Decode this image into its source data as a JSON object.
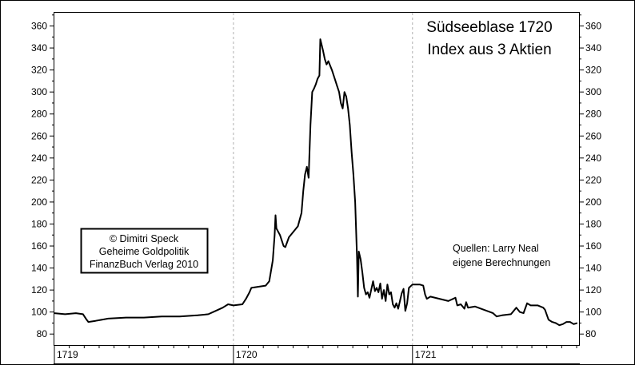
{
  "chart_data": {
    "type": "line",
    "title": "Südseeblase 1720",
    "subtitle": "Index aus 3 Aktien",
    "xlabel": "",
    "ylabel": "",
    "x_domain": [
      1719.0,
      1721.93
    ],
    "ylim": [
      70,
      372
    ],
    "y_ticks": [
      80,
      100,
      120,
      140,
      160,
      180,
      200,
      220,
      240,
      260,
      280,
      300,
      320,
      340,
      360
    ],
    "x_year_labels": [
      {
        "year": 1719,
        "label": "1719"
      },
      {
        "year": 1720,
        "label": "1720"
      },
      {
        "year": 1721,
        "label": "1721"
      }
    ],
    "grid": "dashed vertical lines at year boundaries",
    "line_color": "#000000",
    "series": [
      {
        "values": [
          [
            1719.0,
            99
          ],
          [
            1719.06,
            98
          ],
          [
            1719.12,
            99
          ],
          [
            1719.16,
            98
          ],
          [
            1719.18,
            93
          ],
          [
            1719.19,
            91
          ],
          [
            1719.23,
            92
          ],
          [
            1719.3,
            94
          ],
          [
            1719.4,
            95
          ],
          [
            1719.5,
            95
          ],
          [
            1719.6,
            96
          ],
          [
            1719.7,
            96
          ],
          [
            1719.8,
            97
          ],
          [
            1719.86,
            98
          ],
          [
            1719.9,
            101
          ],
          [
            1719.94,
            104
          ],
          [
            1719.97,
            107
          ],
          [
            1720.0,
            106
          ],
          [
            1720.05,
            107
          ],
          [
            1720.07,
            112
          ],
          [
            1720.09,
            118
          ],
          [
            1720.1,
            122
          ],
          [
            1720.14,
            123
          ],
          [
            1720.18,
            124
          ],
          [
            1720.2,
            128
          ],
          [
            1720.22,
            147
          ],
          [
            1720.23,
            170
          ],
          [
            1720.235,
            188
          ],
          [
            1720.24,
            176
          ],
          [
            1720.26,
            170
          ],
          [
            1720.28,
            160
          ],
          [
            1720.29,
            159
          ],
          [
            1720.31,
            168
          ],
          [
            1720.33,
            172
          ],
          [
            1720.36,
            178
          ],
          [
            1720.38,
            190
          ],
          [
            1720.39,
            210
          ],
          [
            1720.4,
            225
          ],
          [
            1720.41,
            232
          ],
          [
            1720.42,
            222
          ],
          [
            1720.43,
            270
          ],
          [
            1720.44,
            300
          ],
          [
            1720.45,
            303
          ],
          [
            1720.46,
            307
          ],
          [
            1720.47,
            312
          ],
          [
            1720.48,
            315
          ],
          [
            1720.485,
            348
          ],
          [
            1720.5,
            338
          ],
          [
            1720.51,
            330
          ],
          [
            1720.52,
            325
          ],
          [
            1720.53,
            328
          ],
          [
            1720.55,
            320
          ],
          [
            1720.57,
            310
          ],
          [
            1720.58,
            305
          ],
          [
            1720.59,
            300
          ],
          [
            1720.6,
            290
          ],
          [
            1720.61,
            285
          ],
          [
            1720.62,
            300
          ],
          [
            1720.63,
            296
          ],
          [
            1720.64,
            285
          ],
          [
            1720.65,
            270
          ],
          [
            1720.66,
            245
          ],
          [
            1720.67,
            225
          ],
          [
            1720.68,
            200
          ],
          [
            1720.69,
            150
          ],
          [
            1720.695,
            114
          ],
          [
            1720.7,
            155
          ],
          [
            1720.71,
            148
          ],
          [
            1720.72,
            136
          ],
          [
            1720.73,
            122
          ],
          [
            1720.74,
            116
          ],
          [
            1720.75,
            118
          ],
          [
            1720.76,
            113
          ],
          [
            1720.78,
            128
          ],
          [
            1720.79,
            119
          ],
          [
            1720.8,
            122
          ],
          [
            1720.81,
            118
          ],
          [
            1720.82,
            126
          ],
          [
            1720.83,
            112
          ],
          [
            1720.84,
            120
          ],
          [
            1720.85,
            110
          ],
          [
            1720.86,
            125
          ],
          [
            1720.87,
            116
          ],
          [
            1720.88,
            118
          ],
          [
            1720.89,
            107
          ],
          [
            1720.9,
            104
          ],
          [
            1720.91,
            108
          ],
          [
            1720.92,
            103
          ],
          [
            1720.93,
            110
          ],
          [
            1720.94,
            117
          ],
          [
            1720.95,
            121
          ],
          [
            1720.96,
            101
          ],
          [
            1720.97,
            108
          ],
          [
            1720.98,
            122
          ],
          [
            1721.0,
            125
          ],
          [
            1721.04,
            125
          ],
          [
            1721.06,
            124
          ],
          [
            1721.07,
            116
          ],
          [
            1721.08,
            112
          ],
          [
            1721.1,
            114
          ],
          [
            1721.15,
            112
          ],
          [
            1721.2,
            110
          ],
          [
            1721.24,
            113
          ],
          [
            1721.25,
            106
          ],
          [
            1721.27,
            107
          ],
          [
            1721.29,
            103
          ],
          [
            1721.3,
            109
          ],
          [
            1721.31,
            104
          ],
          [
            1721.35,
            105
          ],
          [
            1721.4,
            102
          ],
          [
            1721.45,
            99
          ],
          [
            1721.47,
            96
          ],
          [
            1721.5,
            97
          ],
          [
            1721.55,
            98
          ],
          [
            1721.58,
            104
          ],
          [
            1721.6,
            100
          ],
          [
            1721.62,
            99
          ],
          [
            1721.64,
            108
          ],
          [
            1721.66,
            106
          ],
          [
            1721.7,
            106
          ],
          [
            1721.73,
            104
          ],
          [
            1721.74,
            102
          ],
          [
            1721.76,
            93
          ],
          [
            1721.78,
            91
          ],
          [
            1721.8,
            90
          ],
          [
            1721.82,
            88
          ],
          [
            1721.84,
            89
          ],
          [
            1721.86,
            91
          ],
          [
            1721.88,
            91
          ],
          [
            1721.9,
            89
          ],
          [
            1721.92,
            90
          ]
        ]
      }
    ]
  },
  "notes": {
    "copyright_lines": [
      "© Dimitri Speck",
      "Geheime Goldpolitik",
      "FinanzBuch Verlag 2010"
    ],
    "source_lines": [
      "Quellen: Larry Neal",
      "eigene Berechnungen"
    ]
  }
}
